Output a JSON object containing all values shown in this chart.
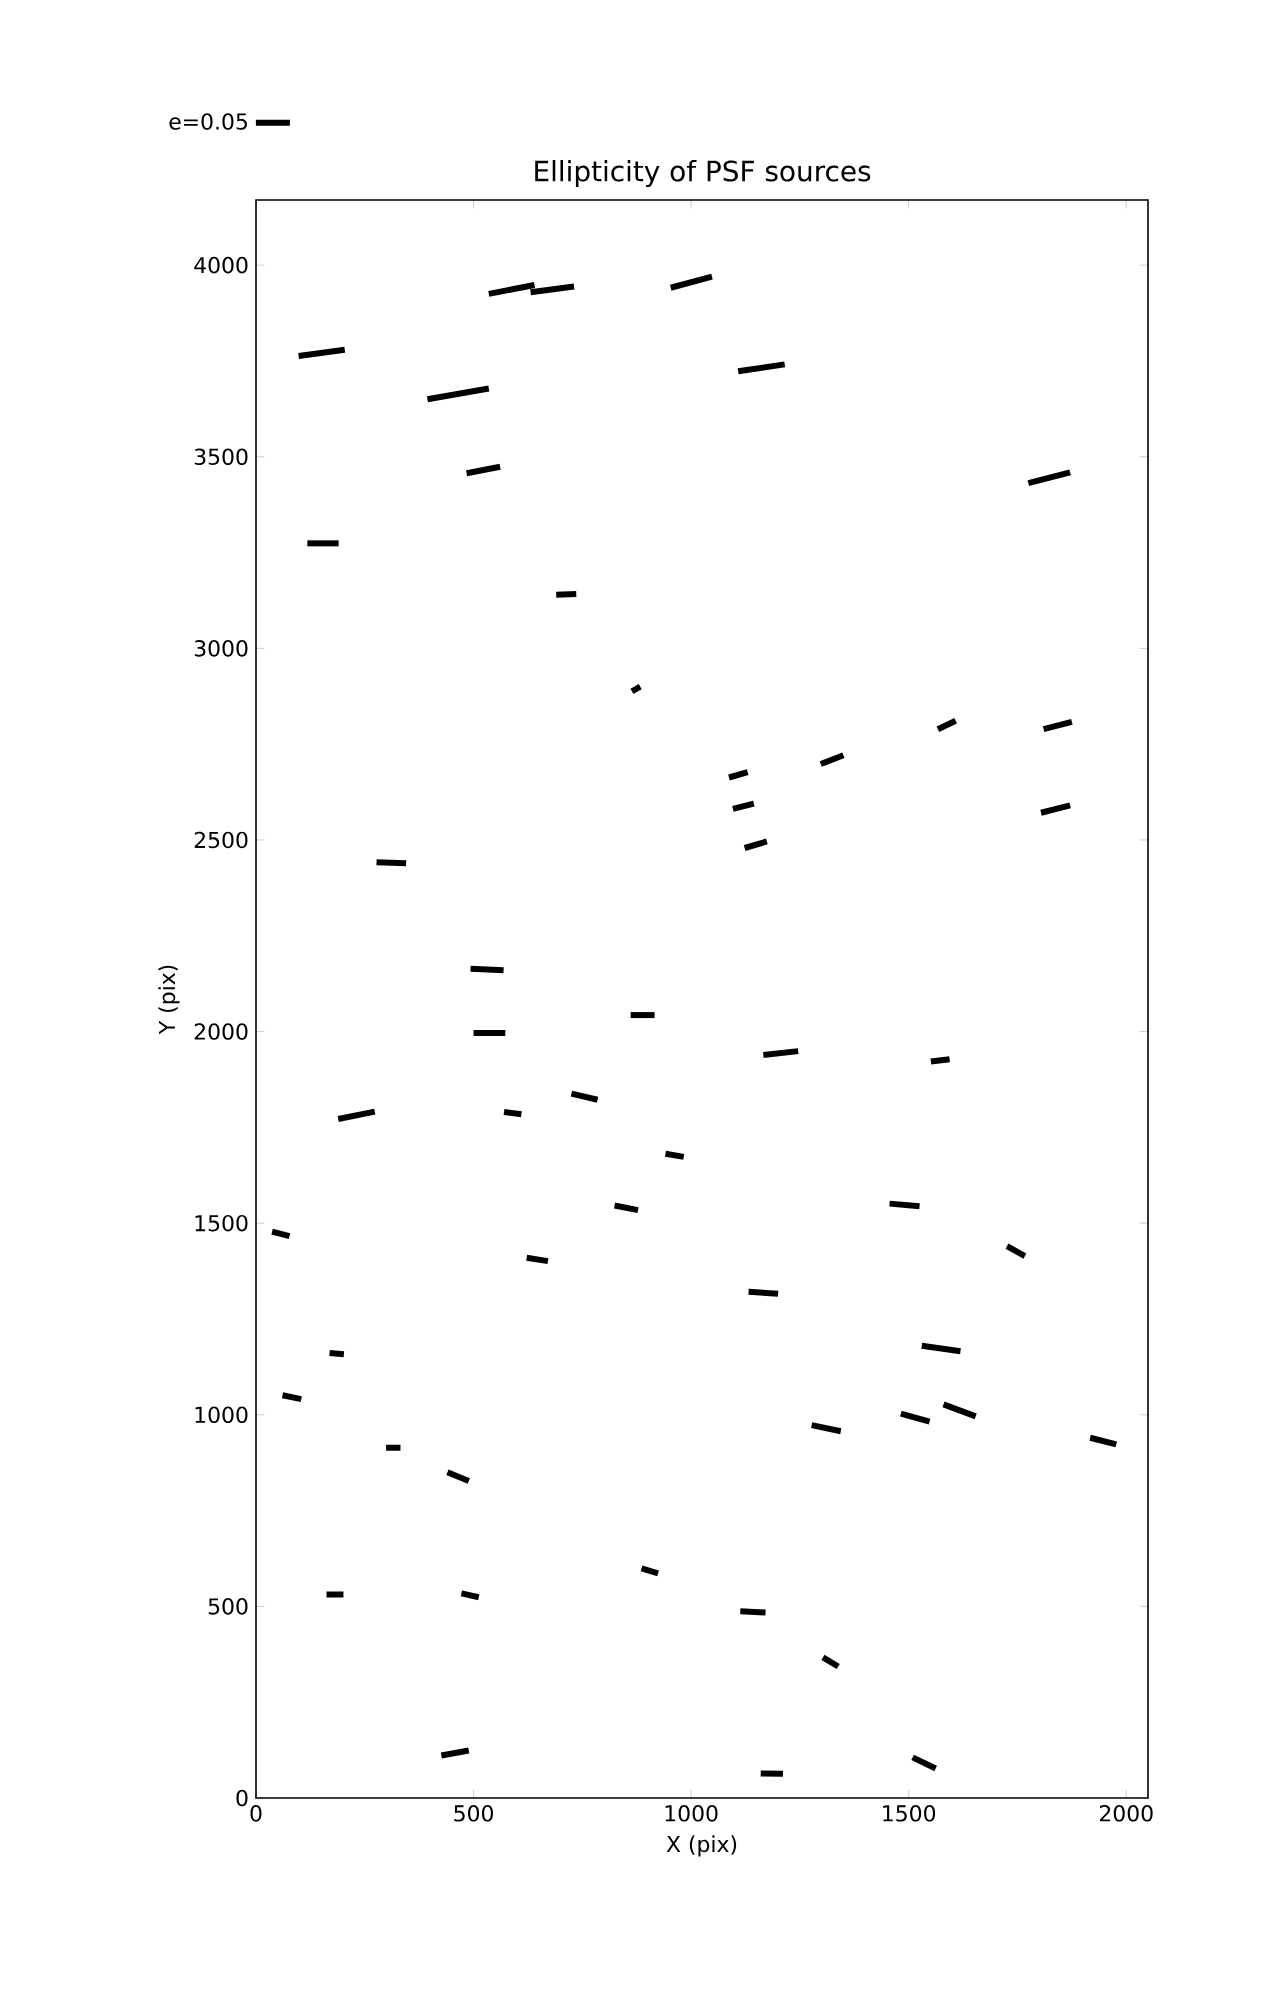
{
  "chart_data": {
    "type": "line",
    "title": "Ellipticity of PSF sources",
    "xlabel": "X (pix)",
    "ylabel": "Y (pix)",
    "xlim": [
      0,
      2050
    ],
    "ylim": [
      0,
      4170
    ],
    "xticks": [
      0,
      500,
      1000,
      1500,
      2000
    ],
    "yticks": [
      0,
      500,
      1000,
      1500,
      2000,
      2500,
      3000,
      3500,
      4000
    ],
    "grid": false,
    "legend": "top left",
    "marker": "none",
    "line_style": "solid",
    "series": [
      {
        "name": "e=0.05",
        "color": "#000000",
        "x": [
          535,
          640
        ],
        "values": [
          3925,
          3948
        ]
      },
      {
        "color": "#000000",
        "x": [
          631,
          731
        ],
        "values": [
          3929,
          3944
        ]
      },
      {
        "color": "#000000",
        "x": [
          953,
          1048
        ],
        "values": [
          3941,
          3970
        ]
      },
      {
        "color": "#000000",
        "x": [
          98,
          204
        ],
        "values": [
          3763,
          3779
        ]
      },
      {
        "color": "#000000",
        "x": [
          394,
          535
        ],
        "values": [
          3650,
          3678
        ]
      },
      {
        "color": "#000000",
        "x": [
          1108,
          1215
        ],
        "values": [
          3723,
          3741
        ]
      },
      {
        "color": "#000000",
        "x": [
          484,
          561
        ],
        "values": [
          3457,
          3474
        ]
      },
      {
        "color": "#000000",
        "x": [
          1775,
          1871
        ],
        "values": [
          3431,
          3459
        ]
      },
      {
        "color": "#000000",
        "x": [
          118,
          190
        ],
        "values": [
          3274,
          3274
        ]
      },
      {
        "color": "#000000",
        "x": [
          690,
          736
        ],
        "values": [
          3140,
          3142
        ]
      },
      {
        "color": "#000000",
        "x": [
          864,
          883
        ],
        "values": [
          2888,
          2900
        ]
      },
      {
        "color": "#000000",
        "x": [
          1567,
          1608
        ],
        "values": [
          2789,
          2811
        ]
      },
      {
        "color": "#000000",
        "x": [
          1810,
          1875
        ],
        "values": [
          2789,
          2808
        ]
      },
      {
        "color": "#000000",
        "x": [
          1087,
          1130
        ],
        "values": [
          2663,
          2677
        ]
      },
      {
        "color": "#000000",
        "x": [
          1298,
          1350
        ],
        "values": [
          2698,
          2721
        ]
      },
      {
        "color": "#000000",
        "x": [
          1096,
          1144
        ],
        "values": [
          2581,
          2595
        ]
      },
      {
        "color": "#000000",
        "x": [
          1804,
          1871
        ],
        "values": [
          2571,
          2590
        ]
      },
      {
        "color": "#000000",
        "x": [
          1123,
          1174
        ],
        "values": [
          2479,
          2496
        ]
      },
      {
        "color": "#000000",
        "x": [
          277,
          345
        ],
        "values": [
          2442,
          2439
        ]
      },
      {
        "color": "#000000",
        "x": [
          493,
          569
        ],
        "values": [
          2164,
          2160
        ]
      },
      {
        "color": "#000000",
        "x": [
          861,
          916
        ],
        "values": [
          2043,
          2043
        ]
      },
      {
        "color": "#000000",
        "x": [
          500,
          573
        ],
        "values": [
          1996,
          1996
        ]
      },
      {
        "color": "#000000",
        "x": [
          1166,
          1246
        ],
        "values": [
          1939,
          1949
        ]
      },
      {
        "color": "#000000",
        "x": [
          1551,
          1594
        ],
        "values": [
          1922,
          1928
        ]
      },
      {
        "color": "#000000",
        "x": [
          189,
          273
        ],
        "values": [
          1772,
          1791
        ]
      },
      {
        "color": "#000000",
        "x": [
          725,
          785
        ],
        "values": [
          1838,
          1822
        ]
      },
      {
        "color": "#000000",
        "x": [
          570,
          610
        ],
        "values": [
          1790,
          1784
        ]
      },
      {
        "color": "#000000",
        "x": [
          941,
          983
        ],
        "values": [
          1681,
          1673
        ]
      },
      {
        "color": "#000000",
        "x": [
          824,
          878
        ],
        "values": [
          1546,
          1534
        ]
      },
      {
        "color": "#000000",
        "x": [
          1456,
          1525
        ],
        "values": [
          1551,
          1544
        ]
      },
      {
        "color": "#000000",
        "x": [
          37,
          77
        ],
        "values": [
          1478,
          1466
        ]
      },
      {
        "color": "#000000",
        "x": [
          622,
          671
        ],
        "values": [
          1410,
          1401
        ]
      },
      {
        "color": "#000000",
        "x": [
          1726,
          1767
        ],
        "values": [
          1440,
          1414
        ]
      },
      {
        "color": "#000000",
        "x": [
          1132,
          1200
        ],
        "values": [
          1321,
          1316
        ]
      },
      {
        "color": "#000000",
        "x": [
          1530,
          1619
        ],
        "values": [
          1180,
          1166
        ]
      },
      {
        "color": "#000000",
        "x": [
          169,
          202
        ],
        "values": [
          1161,
          1158
        ]
      },
      {
        "color": "#000000",
        "x": [
          61,
          104
        ],
        "values": [
          1051,
          1041
        ]
      },
      {
        "color": "#000000",
        "x": [
          1482,
          1548
        ],
        "values": [
          1003,
          982
        ]
      },
      {
        "color": "#000000",
        "x": [
          1580,
          1654
        ],
        "values": [
          1027,
          996
        ]
      },
      {
        "color": "#000000",
        "x": [
          1277,
          1344
        ],
        "values": [
          973,
          957
        ]
      },
      {
        "color": "#000000",
        "x": [
          1917,
          1977
        ],
        "values": [
          940,
          923
        ]
      },
      {
        "color": "#000000",
        "x": [
          299,
          332
        ],
        "values": [
          914,
          914
        ]
      },
      {
        "color": "#000000",
        "x": [
          440,
          489
        ],
        "values": [
          850,
          827
        ]
      },
      {
        "color": "#000000",
        "x": [
          886,
          924
        ],
        "values": [
          599,
          586
        ]
      },
      {
        "color": "#000000",
        "x": [
          162,
          201
        ],
        "values": [
          531,
          531
        ]
      },
      {
        "color": "#000000",
        "x": [
          472,
          512
        ],
        "values": [
          534,
          524
        ]
      },
      {
        "color": "#000000",
        "x": [
          1113,
          1171
        ],
        "values": [
          487,
          484
        ]
      },
      {
        "color": "#000000",
        "x": [
          1303,
          1338
        ],
        "values": [
          367,
          343
        ]
      },
      {
        "color": "#000000",
        "x": [
          426,
          489
        ],
        "values": [
          111,
          124
        ]
      },
      {
        "color": "#000000",
        "x": [
          1160,
          1211
        ],
        "values": [
          64,
          63
        ]
      },
      {
        "color": "#000000",
        "x": [
          1509,
          1562
        ],
        "values": [
          106,
          77
        ]
      }
    ]
  }
}
